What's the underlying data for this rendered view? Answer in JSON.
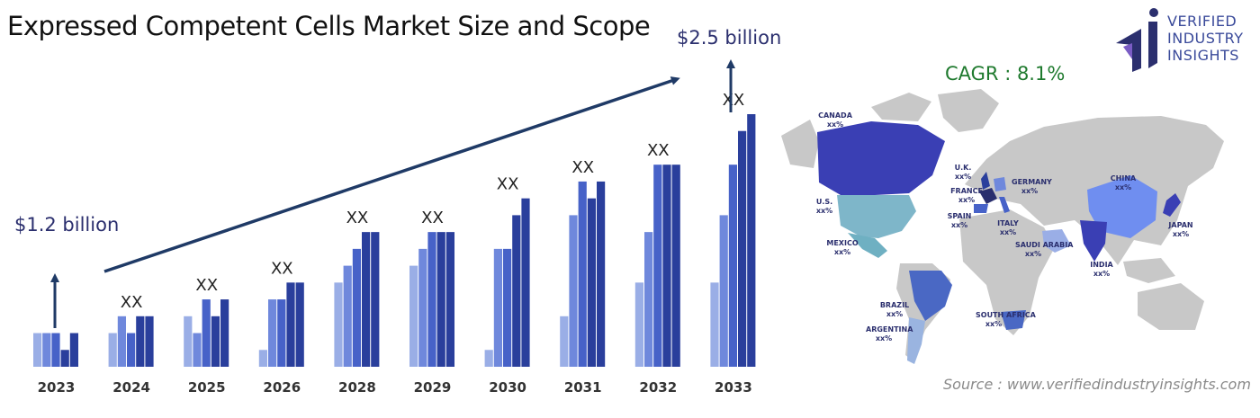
{
  "title": "Expressed Competent Cells Market Size and Scope",
  "start_value_label": "$1.2 billion",
  "end_value_label": "$2.5 billion",
  "cagr_label": "CAGR : 8.1%",
  "source": "Source : www.verifiedindustryinsights.com",
  "logo": {
    "line1": "VERIFIED",
    "line2": "INDUSTRY",
    "line3": "INSIGHTS"
  },
  "colors": {
    "shade1": "#9aaee6",
    "shade2": "#6f88dc",
    "shade3": "#4762c8",
    "shade4": "#2a3f9c",
    "arrow": "#1f3a66",
    "title": "#2b2f6e"
  },
  "chart_data": {
    "type": "bar",
    "categories": [
      "2023",
      "2024",
      "2025",
      "2026",
      "2028",
      "2029",
      "2030",
      "2031",
      "2032",
      "2033"
    ],
    "bar_labels": [
      "",
      "XX",
      "XX",
      "XX",
      "XX",
      "XX",
      "XX",
      "XX",
      "XX",
      "XX"
    ],
    "series": [
      {
        "values": [
          2,
          2,
          3,
          1,
          5,
          6,
          1,
          3,
          5,
          5
        ]
      },
      {
        "values": [
          2,
          3,
          2,
          4,
          6,
          7,
          7,
          9,
          8,
          9
        ]
      },
      {
        "values": [
          2,
          2,
          4,
          4,
          7,
          8,
          7,
          11,
          12,
          12
        ]
      },
      {
        "values": [
          1,
          3,
          3,
          5,
          8,
          8,
          9,
          10,
          12,
          14
        ]
      },
      {
        "values": [
          2,
          3,
          4,
          5,
          8,
          8,
          10,
          11,
          12,
          15
        ]
      }
    ],
    "ylim": [
      0,
      15
    ]
  },
  "map": {
    "regions": [
      {
        "name": "CANADA",
        "value": "xx%"
      },
      {
        "name": "U.S.",
        "value": "xx%"
      },
      {
        "name": "MEXICO",
        "value": "xx%"
      },
      {
        "name": "BRAZIL",
        "value": "xx%"
      },
      {
        "name": "ARGENTINA",
        "value": "xx%"
      },
      {
        "name": "U.K.",
        "value": "xx%"
      },
      {
        "name": "FRANCE",
        "value": "xx%"
      },
      {
        "name": "GERMANY",
        "value": "xx%"
      },
      {
        "name": "SPAIN",
        "value": "xx%"
      },
      {
        "name": "ITALY",
        "value": "xx%"
      },
      {
        "name": "SAUDI ARABIA",
        "value": "xx%"
      },
      {
        "name": "SOUTH AFRICA",
        "value": "xx%"
      },
      {
        "name": "CHINA",
        "value": "xx%"
      },
      {
        "name": "INDIA",
        "value": "xx%"
      },
      {
        "name": "JAPAN",
        "value": "xx%"
      }
    ]
  }
}
